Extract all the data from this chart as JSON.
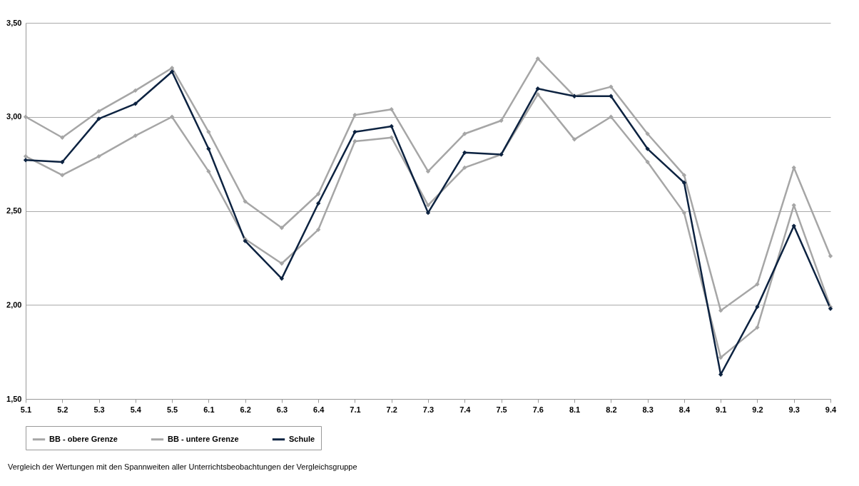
{
  "chart_data": {
    "type": "line",
    "categories": [
      "5.1",
      "5.2",
      "5.3",
      "5.4",
      "5.5",
      "6.1",
      "6.2",
      "6.3",
      "6.4",
      "7.1",
      "7.2",
      "7.3",
      "7.4",
      "7.5",
      "7.6",
      "8.1",
      "8.2",
      "8.3",
      "8.4",
      "9.1",
      "9.2",
      "9.3",
      "9.4"
    ],
    "series": [
      {
        "name": "BB - obere Grenze",
        "color": "#a6a6a6",
        "values": [
          3.0,
          2.89,
          3.03,
          3.14,
          3.26,
          2.92,
          2.55,
          2.41,
          2.59,
          3.01,
          3.04,
          2.71,
          2.91,
          2.98,
          3.31,
          3.11,
          3.16,
          2.91,
          2.69,
          1.97,
          2.11,
          2.73,
          2.26
        ]
      },
      {
        "name": "BB - untere Grenze",
        "color": "#a6a6a6",
        "values": [
          2.79,
          2.69,
          2.79,
          2.9,
          3.0,
          2.71,
          2.35,
          2.22,
          2.4,
          2.87,
          2.89,
          2.53,
          2.73,
          2.8,
          3.12,
          2.88,
          3.0,
          2.76,
          2.49,
          1.72,
          1.88,
          2.53,
          1.99
        ]
      },
      {
        "name": "Schule",
        "color": "#0d2341",
        "values": [
          2.77,
          2.76,
          2.99,
          3.07,
          3.24,
          2.83,
          2.34,
          2.14,
          2.54,
          2.92,
          2.95,
          2.49,
          2.81,
          2.8,
          3.15,
          3.11,
          3.11,
          2.83,
          2.65,
          1.63,
          1.99,
          2.42,
          1.98
        ]
      }
    ],
    "ylim": [
      1.5,
      3.5
    ],
    "yticks": [
      {
        "value": 1.5,
        "label": "1,50"
      },
      {
        "value": 2,
        "label": "2,00"
      },
      {
        "value": 2.5,
        "label": "2,50"
      },
      {
        "value": 3,
        "label": "3,00"
      },
      {
        "value": 3.5,
        "label": "3,50"
      }
    ],
    "grid": "y",
    "legend": "bottom",
    "marker": "diamond",
    "line_style": "solid",
    "annotations": [
      "Vergleich  der  Wertungen  mit den Spannweiten  aller Unterrichtsbeobachtungen  der Vergleichsgruppe"
    ]
  }
}
